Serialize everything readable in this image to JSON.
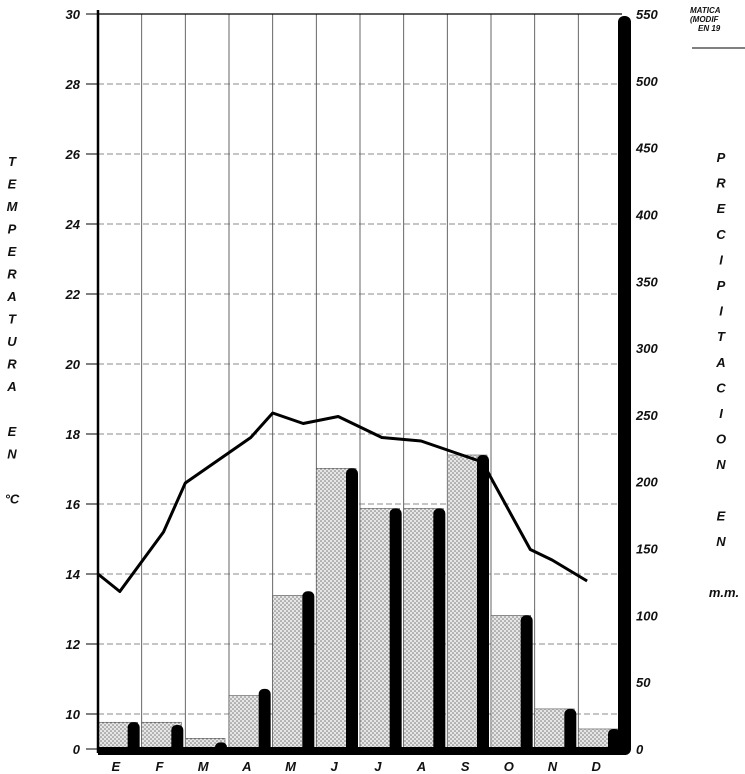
{
  "corner_text": [
    "MATICA",
    "(MODIF",
    "EN 19"
  ],
  "chart_data": {
    "type": "bar+line",
    "categories": [
      "E",
      "F",
      "M",
      "A",
      "M",
      "J",
      "J",
      "A",
      "S",
      "O",
      "N",
      "D"
    ],
    "temperature_axis": {
      "label_letters": [
        "T",
        "E",
        "M",
        "P",
        "E",
        "R",
        "A",
        "T",
        "U",
        "R",
        "A",
        "",
        "E",
        "N",
        "",
        "°C"
      ],
      "ticks": [
        0,
        10,
        12,
        14,
        16,
        18,
        20,
        22,
        24,
        26,
        28,
        30
      ],
      "range_min": 9,
      "range_max": 30
    },
    "precipitation_axis": {
      "label_letters": [
        "P",
        "R",
        "E",
        "C",
        "I",
        "P",
        "I",
        "T",
        "A",
        "C",
        "I",
        "O",
        "N",
        "",
        "E",
        "N",
        "",
        "m.m."
      ],
      "ticks": [
        0,
        50,
        100,
        150,
        200,
        250,
        300,
        350,
        400,
        450,
        500,
        550
      ],
      "range": [
        0,
        550
      ]
    },
    "temperature_line": {
      "x": [
        0,
        0.5,
        1.5,
        2,
        3.5,
        4,
        4.7,
        5.5,
        6.5,
        7.4,
        8.8,
        9.9,
        10.4,
        11.2
      ],
      "y": [
        14.0,
        13.5,
        15.2,
        16.6,
        17.9,
        18.6,
        18.3,
        18.5,
        17.9,
        17.8,
        17.2,
        14.7,
        14.4,
        13.8
      ]
    },
    "series": [
      {
        "values": [
          20,
          18,
          5,
          45,
          118,
          210,
          180,
          180,
          220,
          100,
          30,
          15
        ]
      },
      {
        "values": [
          20,
          20,
          8,
          40,
          115,
          210,
          180,
          180,
          220,
          100,
          30,
          15
        ]
      }
    ]
  }
}
